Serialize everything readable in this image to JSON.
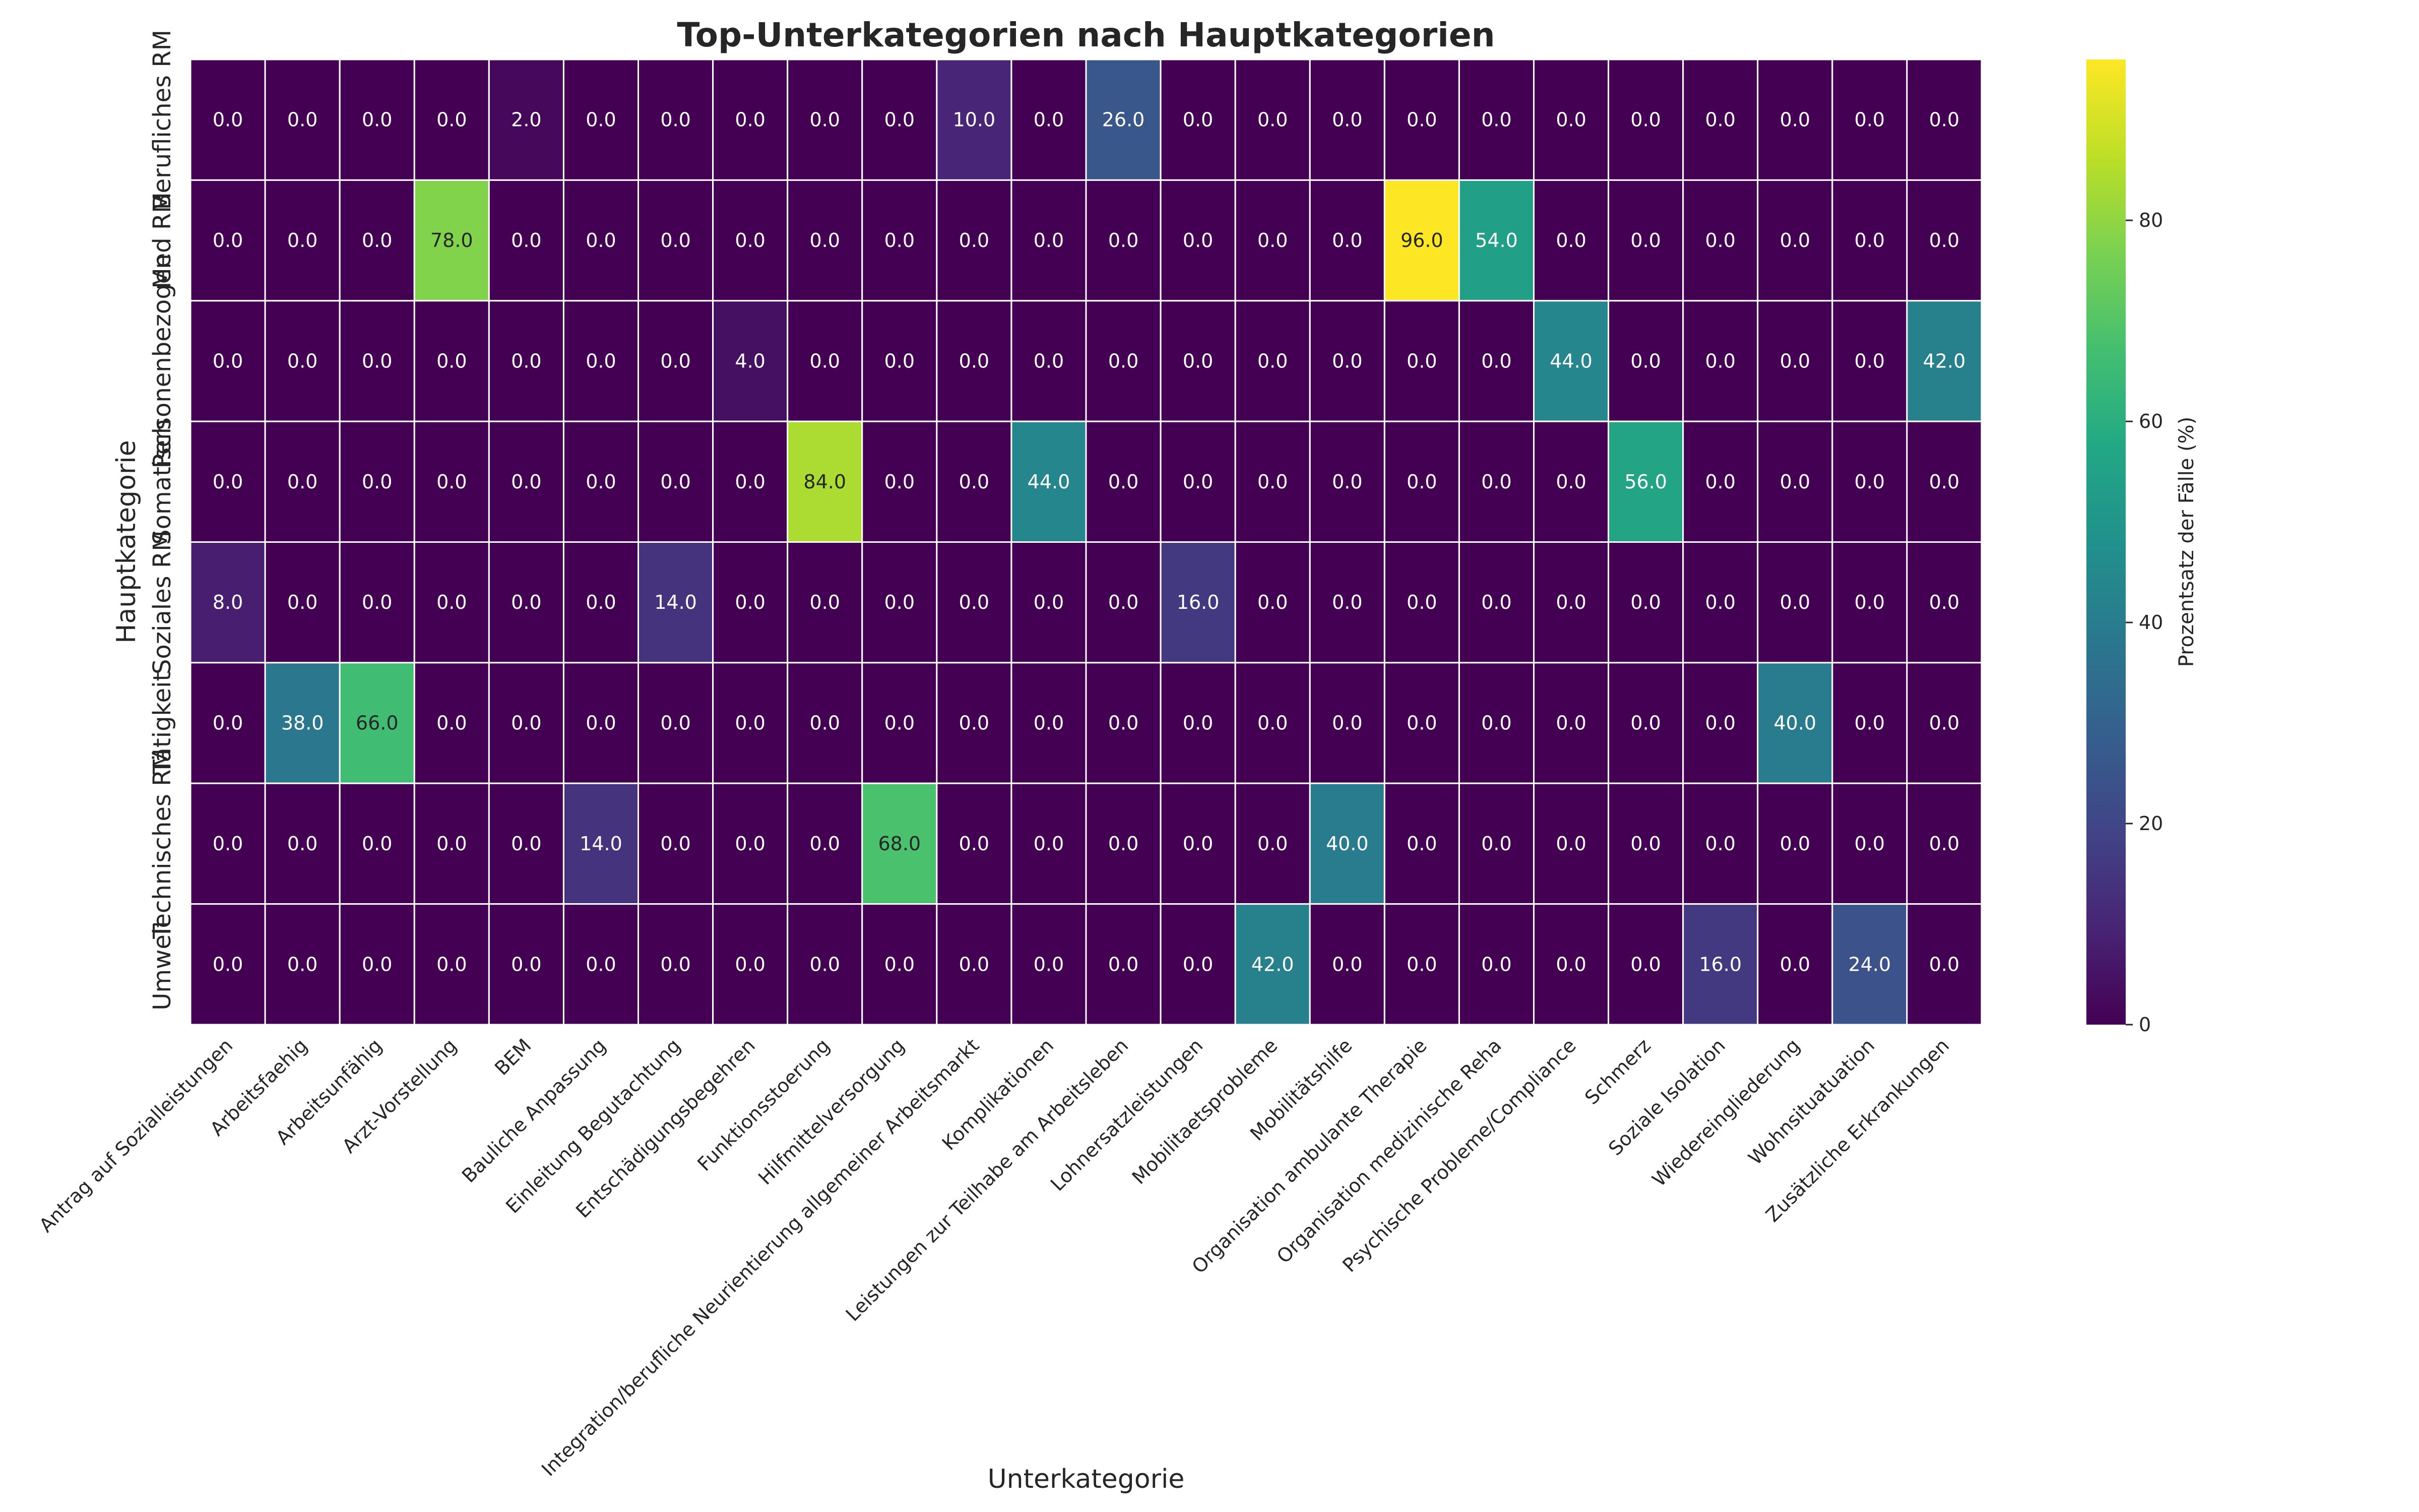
{
  "chart_data": {
    "type": "heatmap",
    "title": "Top-Unterkategorien nach Hauptkategorien",
    "xlabel": "Unterkategorie",
    "ylabel": "Hauptkategorie",
    "colorbar_label": "Prozentsatz der Fälle (%)",
    "colorbar_ticks": [
      0,
      20,
      40,
      60,
      80
    ],
    "colorbar_range": [
      0,
      96
    ],
    "colormap": "viridis",
    "x": [
      "Antrag auf Sozialleistungen",
      "Arbeitsfaehig",
      "Arbeitsunfähig",
      "Arzt-Vorstellung",
      "BEM",
      "Bauliche Anpassung",
      "Einleitung Begutachtung",
      "Entschädigungsbegehren",
      "Funktionsstoerung",
      "Hilfmittelversorgung",
      "Integration/berufliche Neurientierung allgemeiner Arbeitsmarkt",
      "Komplikationen",
      "Leistungen zur Teilhabe am Arbeitsleben",
      "Lohnersatzleistungen",
      "Mobilitaetsprobleme",
      "Mobilitätshilfe",
      "Organisation ambulante Therapie",
      "Organisation medizinische Reha",
      "Psychische Probleme/Compliance",
      "Schmerz",
      "Soziale Isolation",
      "Wiedereingliederung",
      "Wohnsituatuation",
      "Zusätzliche Erkrankungen"
    ],
    "y": [
      "Berufliches RM",
      "Med RM",
      "Personenbezogen",
      "Somatisch",
      "Soziales RM",
      "Tätigkeit",
      "Technisches RM",
      "Umwelt"
    ],
    "values": [
      [
        0,
        0,
        0,
        0,
        2,
        0,
        0,
        0,
        0,
        0,
        10,
        0,
        26,
        0,
        0,
        0,
        0,
        0,
        0,
        0,
        0,
        0,
        0,
        0
      ],
      [
        0,
        0,
        0,
        78,
        0,
        0,
        0,
        0,
        0,
        0,
        0,
        0,
        0,
        0,
        0,
        0,
        96,
        54,
        0,
        0,
        0,
        0,
        0,
        0
      ],
      [
        0,
        0,
        0,
        0,
        0,
        0,
        0,
        4,
        0,
        0,
        0,
        0,
        0,
        0,
        0,
        0,
        0,
        0,
        44,
        0,
        0,
        0,
        0,
        42
      ],
      [
        0,
        0,
        0,
        0,
        0,
        0,
        0,
        0,
        84,
        0,
        0,
        44,
        0,
        0,
        0,
        0,
        0,
        0,
        0,
        56,
        0,
        0,
        0,
        0
      ],
      [
        8,
        0,
        0,
        0,
        0,
        0,
        14,
        0,
        0,
        0,
        0,
        0,
        0,
        16,
        0,
        0,
        0,
        0,
        0,
        0,
        0,
        0,
        0,
        0
      ],
      [
        0,
        38,
        66,
        0,
        0,
        0,
        0,
        0,
        0,
        0,
        0,
        0,
        0,
        0,
        0,
        0,
        0,
        0,
        0,
        0,
        0,
        40,
        0,
        0
      ],
      [
        0,
        0,
        0,
        0,
        0,
        14,
        0,
        0,
        0,
        68,
        0,
        0,
        0,
        0,
        0,
        40,
        0,
        0,
        0,
        0,
        0,
        0,
        0,
        0
      ],
      [
        0,
        0,
        0,
        0,
        0,
        0,
        0,
        0,
        0,
        0,
        0,
        0,
        0,
        0,
        42,
        0,
        0,
        0,
        0,
        0,
        16,
        0,
        24,
        0
      ]
    ],
    "value_format": "0.0",
    "grid": false
  }
}
